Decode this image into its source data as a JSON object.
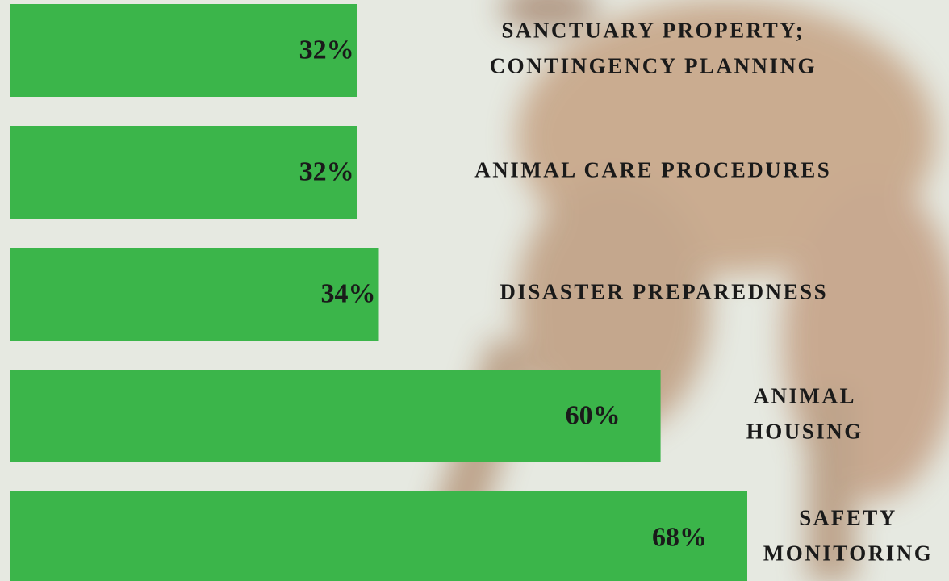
{
  "chart_data": {
    "type": "bar",
    "orientation": "horizontal",
    "color": "#3bb54a",
    "categories": [
      [
        "SANCTUARY PROPERTY;",
        "CONTINGENCY PLANNING"
      ],
      [
        "ANIMAL CARE PROCEDURES"
      ],
      [
        "DISASTER PREPAREDNESS"
      ],
      [
        "ANIMAL",
        "HOUSING"
      ],
      [
        "SAFETY",
        "MONITORING"
      ]
    ],
    "values": [
      32,
      32,
      34,
      60,
      68
    ],
    "value_labels": [
      "32%",
      "32%",
      "34%",
      "60%",
      "68%"
    ]
  }
}
